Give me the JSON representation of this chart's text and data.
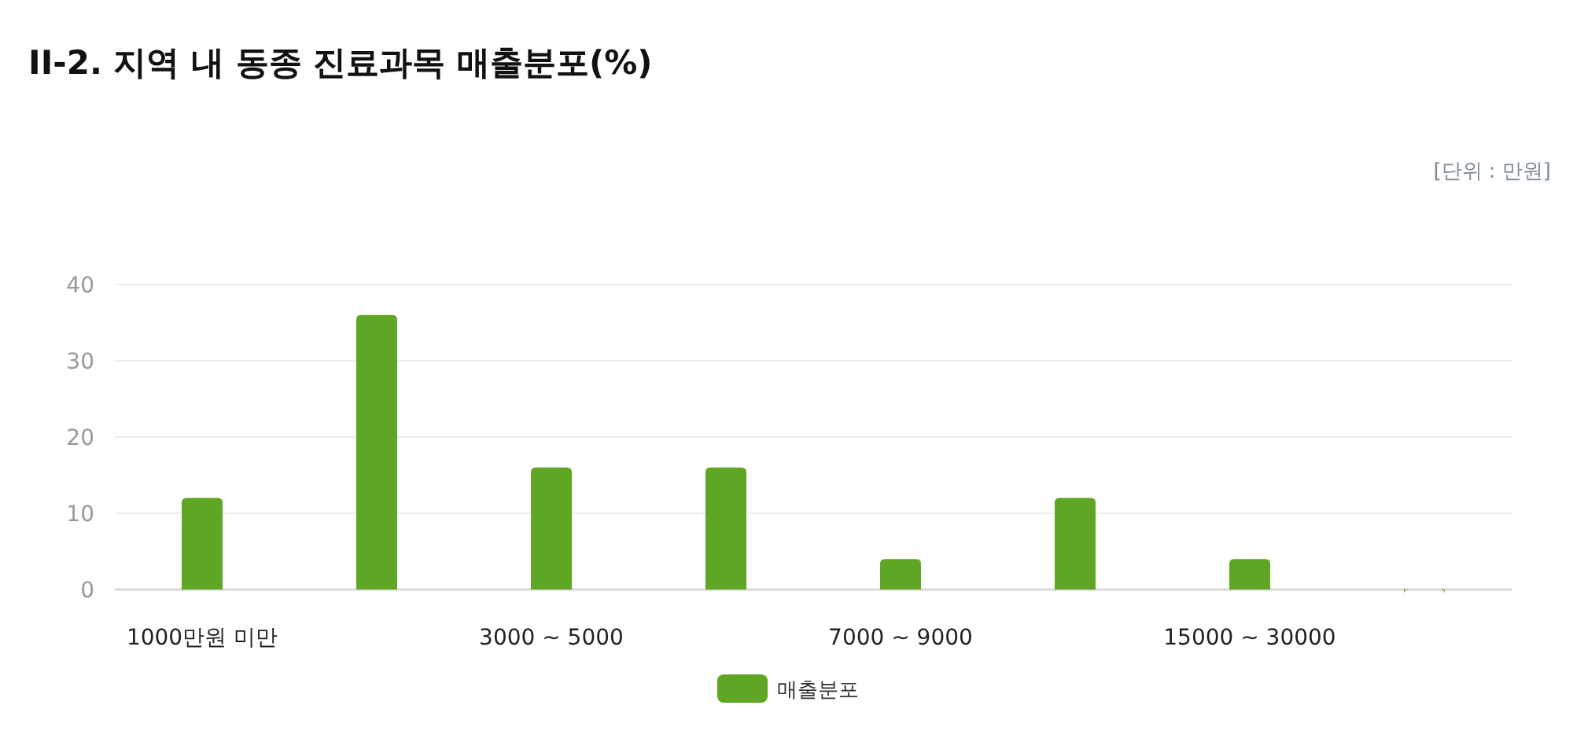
{
  "chart_data": {
    "type": "bar",
    "title": "II-2. 지역 내 동종 진료과목 매출분포(%)",
    "annotations": [
      "[단위 : 만원]"
    ],
    "categories": [
      "1000만원 미만",
      null,
      "3000 ~ 5000",
      null,
      "7000 ~ 9000",
      null,
      "15000 ~ 30000",
      null
    ],
    "series": [
      {
        "name": "매출분포",
        "color": "#5fa624",
        "values": [
          12,
          36,
          16,
          16,
          4,
          12,
          4,
          0
        ]
      }
    ],
    "ylim": [
      0,
      40
    ],
    "yticks": [
      0,
      10,
      20,
      30,
      40
    ],
    "grid": "y",
    "legend": "bottom"
  }
}
